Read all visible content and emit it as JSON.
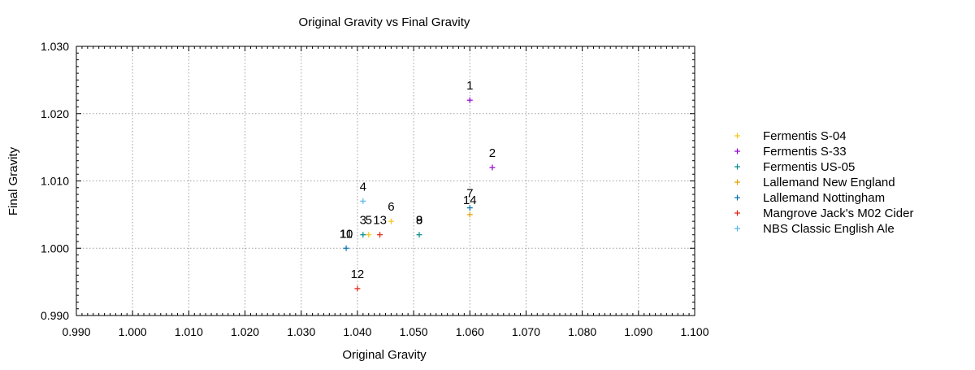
{
  "chart_data": {
    "type": "scatter",
    "title": "Original Gravity vs Final Gravity",
    "xlabel": "Original Gravity",
    "ylabel": "Final Gravity",
    "xlim": [
      0.99,
      1.1
    ],
    "ylim": [
      0.99,
      1.03
    ],
    "xticks": [
      "0.990",
      "1.000",
      "1.010",
      "1.020",
      "1.030",
      "1.040",
      "1.050",
      "1.060",
      "1.070",
      "1.080",
      "1.090",
      "1.100"
    ],
    "yticks": [
      "0.990",
      "1.000",
      "1.010",
      "1.020",
      "1.030"
    ],
    "grid": true,
    "legend_position": "right",
    "series": [
      {
        "name": "Fermentis S-04",
        "color": "#f5c518",
        "points": [
          {
            "x": 1.042,
            "y": 1.002
          },
          {
            "x": 1.046,
            "y": 1.004
          }
        ]
      },
      {
        "name": "Fermentis S-33",
        "color": "#9400d3",
        "points": [
          {
            "x": 1.06,
            "y": 1.022
          },
          {
            "x": 1.064,
            "y": 1.012
          }
        ]
      },
      {
        "name": "Fermentis US-05",
        "color": "#008b8b",
        "points": [
          {
            "x": 1.041,
            "y": 1.002
          },
          {
            "x": 1.051,
            "y": 1.002
          }
        ]
      },
      {
        "name": "Lallemand New England",
        "color": "#e69f00",
        "points": [
          {
            "x": 1.06,
            "y": 1.005
          }
        ]
      },
      {
        "name": "Lallemand Nottingham",
        "color": "#0072b2",
        "points": [
          {
            "x": 1.038,
            "y": 1.0
          },
          {
            "x": 1.06,
            "y": 1.006
          }
        ]
      },
      {
        "name": "Mangrove Jack's M02 Cider",
        "color": "#e51e10",
        "points": [
          {
            "x": 1.044,
            "y": 1.002
          },
          {
            "x": 1.04,
            "y": 0.994
          }
        ]
      },
      {
        "name": "NBS Classic English Ale",
        "color": "#56b4e9",
        "points": [
          {
            "x": 1.041,
            "y": 1.007
          }
        ]
      }
    ],
    "annotations": [
      {
        "text": "1",
        "x": 1.06,
        "y": 1.022
      },
      {
        "text": "2",
        "x": 1.064,
        "y": 1.012
      },
      {
        "text": "3",
        "x": 1.041,
        "y": 1.002
      },
      {
        "text": "4",
        "x": 1.041,
        "y": 1.007
      },
      {
        "text": "5",
        "x": 1.042,
        "y": 1.002
      },
      {
        "text": "6",
        "x": 1.046,
        "y": 1.004
      },
      {
        "text": "7",
        "x": 1.06,
        "y": 1.006
      },
      {
        "text": "8",
        "x": 1.051,
        "y": 1.002
      },
      {
        "text": "9",
        "x": 1.051,
        "y": 1.002
      },
      {
        "text": "10",
        "x": 1.038,
        "y": 1.0
      },
      {
        "text": "11",
        "x": 1.038,
        "y": 1.0
      },
      {
        "text": "12",
        "x": 1.04,
        "y": 0.994
      },
      {
        "text": "13",
        "x": 1.044,
        "y": 1.002
      },
      {
        "text": "14",
        "x": 1.06,
        "y": 1.005
      }
    ]
  }
}
